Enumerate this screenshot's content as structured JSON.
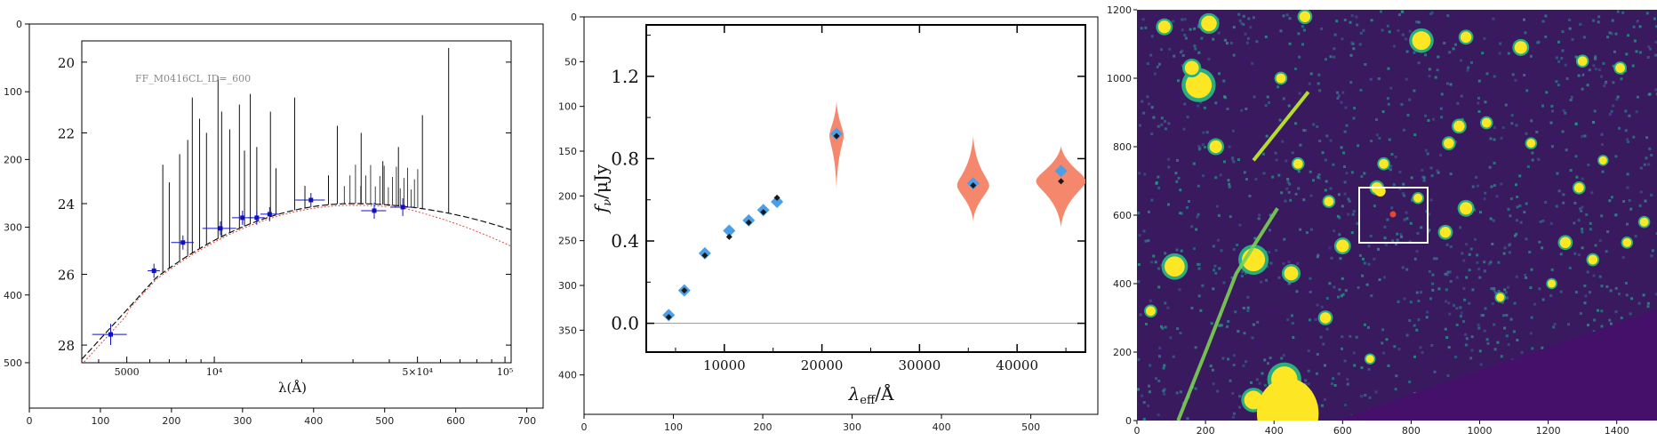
{
  "panels": [
    {
      "id": "sed-image",
      "outer_x_ticks": [
        "0",
        "100",
        "200",
        "300",
        "400",
        "500",
        "600",
        "700"
      ],
      "outer_y_ticks": [
        "0",
        "100",
        "200",
        "300",
        "400",
        "500"
      ],
      "inner_y_ticks": [
        "20",
        "22",
        "24",
        "26",
        "28"
      ],
      "inner_x_ticks": [
        "5000",
        "10⁴",
        "5×10⁴",
        "10⁵"
      ],
      "inner_xlabel": "λ(Å)",
      "inner_label": "FF_M0416CL_ID=_600"
    },
    {
      "id": "photometry",
      "outer_x_ticks": [
        "0",
        "100",
        "200",
        "300",
        "400",
        "500"
      ],
      "outer_y_ticks": [
        "0",
        "50",
        "100",
        "150",
        "200",
        "250",
        "300",
        "350",
        "400"
      ],
      "inner_y_ticks": [
        "0.0",
        "0.4",
        "0.8",
        "1.2"
      ],
      "inner_x_ticks": [
        "10000",
        "20000",
        "30000",
        "40000"
      ],
      "xlabel": "λ_eff/Å",
      "ylabel": "f_ν/μJy"
    },
    {
      "id": "cutout",
      "x_ticks": [
        "0",
        "200",
        "400",
        "600",
        "800",
        "1000",
        "1200",
        "1400"
      ],
      "y_ticks": [
        "0",
        "200",
        "400",
        "600",
        "800",
        "1000",
        "1200"
      ]
    }
  ],
  "chart_data": [
    {
      "type": "scatter",
      "title": "",
      "xlabel": "λ(Å)",
      "ylabel": "",
      "label": "FF_M0416CL_ID=_600",
      "xscale": "log",
      "xlim": [
        3500,
        105000
      ],
      "ylim": [
        28.5,
        19.4
      ],
      "series": [
        {
          "values": [
            {
              "x": 4400,
              "y": 27.7
            },
            {
              "x": 6200,
              "y": 25.9
            },
            {
              "x": 7800,
              "y": 25.1
            },
            {
              "x": 10500,
              "y": 24.7
            },
            {
              "x": 12500,
              "y": 24.4
            },
            {
              "x": 14000,
              "y": 24.4
            },
            {
              "x": 15500,
              "y": 24.3
            },
            {
              "x": 21500,
              "y": 23.9
            },
            {
              "x": 35500,
              "y": 24.2
            },
            {
              "x": 44500,
              "y": 24.1
            }
          ]
        }
      ],
      "colors": {
        "points": "#1010c0",
        "model": "#111111",
        "fit": "#e03a2e"
      }
    },
    {
      "type": "scatter",
      "title": "",
      "xlabel": "λ_eff/Å",
      "ylabel": "f_ν/μJy",
      "xlim": [
        2000,
        47000
      ],
      "ylim": [
        -0.14,
        1.45
      ],
      "series": [
        {
          "name": "",
          "values": [
            {
              "x": 4300,
              "y": 0.04
            },
            {
              "x": 5900,
              "y": 0.16
            },
            {
              "x": 8000,
              "y": 0.34
            },
            {
              "x": 10500,
              "y": 0.45
            },
            {
              "x": 12500,
              "y": 0.5
            },
            {
              "x": 14000,
              "y": 0.55
            },
            {
              "x": 15400,
              "y": 0.59
            },
            {
              "x": 21500,
              "y": 0.92
            },
            {
              "x": 35500,
              "y": 0.68
            },
            {
              "x": 44500,
              "y": 0.74
            }
          ]
        },
        {
          "name": "",
          "values": [
            {
              "x": 4300,
              "y": 0.03
            },
            {
              "x": 5900,
              "y": 0.16
            },
            {
              "x": 8000,
              "y": 0.33
            },
            {
              "x": 10500,
              "y": 0.42
            },
            {
              "x": 12500,
              "y": 0.49
            },
            {
              "x": 14000,
              "y": 0.54
            },
            {
              "x": 15400,
              "y": 0.61
            },
            {
              "x": 21500,
              "y": 0.91
            },
            {
              "x": 35500,
              "y": 0.67
            },
            {
              "x": 44500,
              "y": 0.69
            }
          ]
        }
      ],
      "colors": {
        "observed": "#4a9fe8",
        "model": "#1a1a1a",
        "violin": "#f47a5c"
      }
    }
  ]
}
